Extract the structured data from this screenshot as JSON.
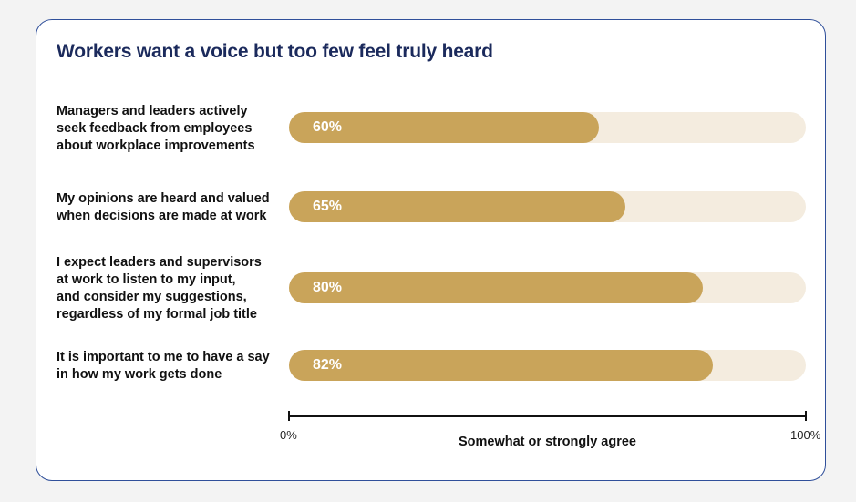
{
  "chart_data": {
    "type": "bar",
    "orientation": "horizontal",
    "title": "Workers want a voice but too few feel truly heard",
    "categories": [
      [
        "Managers and leaders actively",
        "seek feedback from employees",
        "about workplace improvements"
      ],
      [
        "My opinions are heard and valued",
        "when decisions are made at work"
      ],
      [
        "I expect leaders and supervisors",
        "at work to listen to my input,",
        "and consider my suggestions,",
        "regardless of my formal job title"
      ],
      [
        "It is important to me to have a say",
        "in how my work gets done"
      ]
    ],
    "values": [
      60,
      65,
      80,
      82
    ],
    "value_labels": [
      "60%",
      "65%",
      "80%",
      "82%"
    ],
    "xlabel": "Somewhat or strongly agree",
    "ylabel": "",
    "xlim": [
      0,
      100
    ],
    "x_tick_labels": [
      "0%",
      "100%"
    ],
    "grid": false,
    "legend": "none",
    "colors": {
      "fill": "#c9a45a",
      "track": "#f4ecdf",
      "title": "#1b2a5c",
      "border": "#2f4f9a"
    }
  }
}
